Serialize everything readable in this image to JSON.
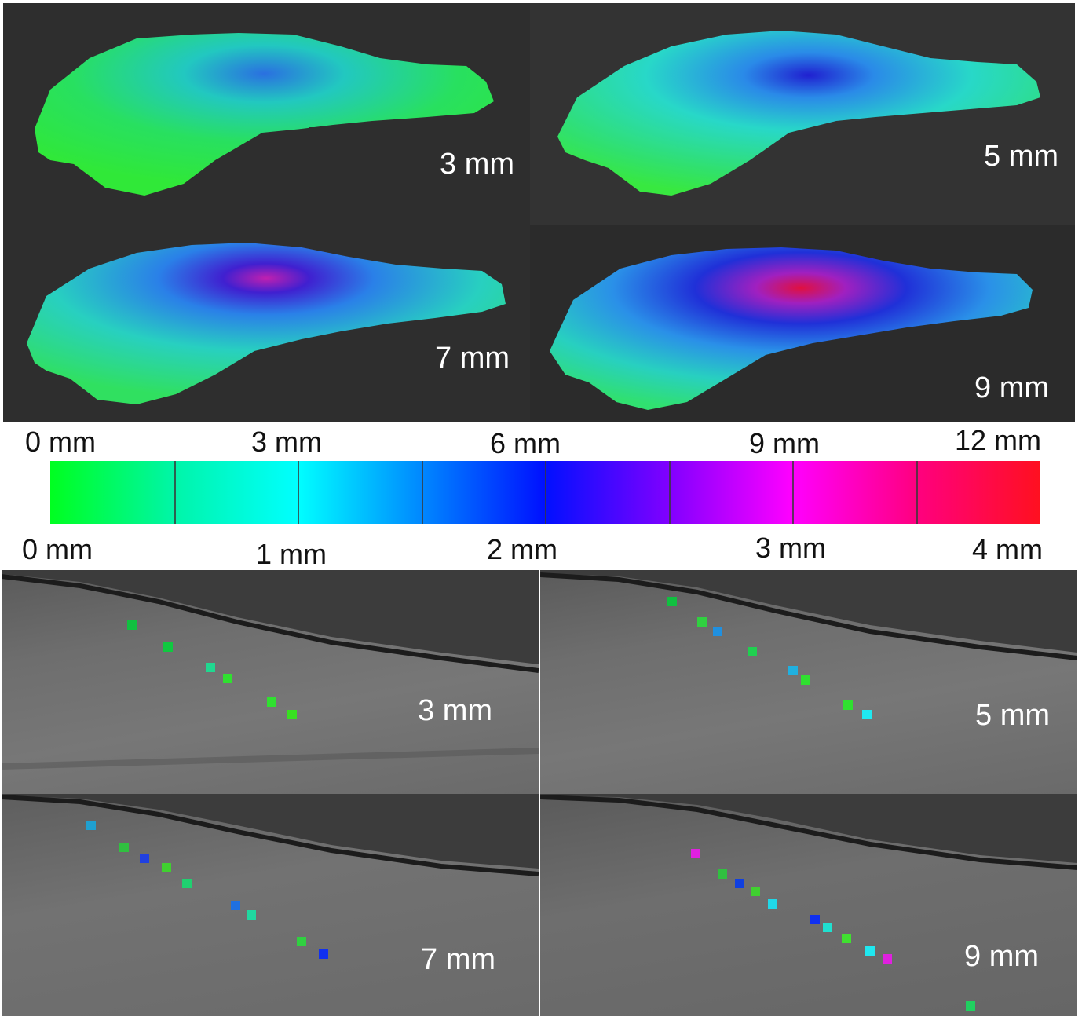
{
  "top_panels": [
    {
      "label": "3 mm"
    },
    {
      "label": "5 mm"
    },
    {
      "label": "7 mm"
    },
    {
      "label": "9 mm"
    }
  ],
  "scale_top_labels": [
    "0 mm",
    "3 mm",
    "6 mm",
    "9 mm",
    "12 mm"
  ],
  "scale_bottom_labels": [
    "0 mm",
    "1 mm",
    "2 mm",
    "3 mm",
    "4 mm"
  ],
  "colorbar": {
    "colors": [
      "#00ff20",
      "#00f5a8",
      "#00ffff",
      "#0088ff",
      "#0010ff",
      "#8000ff",
      "#ff00ff",
      "#ff0080",
      "#ff1020"
    ],
    "tick_count": 7
  },
  "bottom_panels": [
    {
      "label": "3 mm"
    },
    {
      "label": "5 mm"
    },
    {
      "label": "7 mm"
    },
    {
      "label": "9 mm"
    }
  ]
}
